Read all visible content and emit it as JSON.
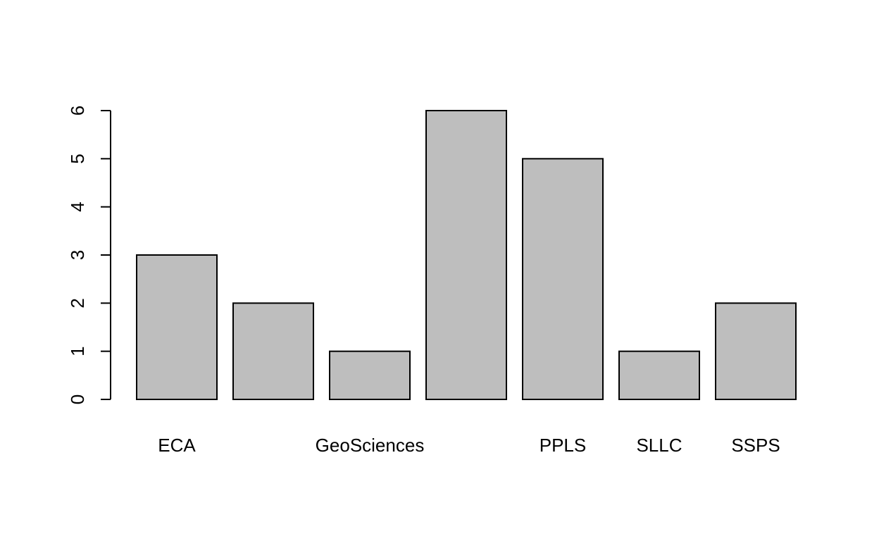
{
  "chart_data": {
    "type": "bar",
    "categories": [
      "ECA",
      "",
      "GeoSciences",
      "",
      "PPLS",
      "SLLC",
      "SSPS"
    ],
    "values": [
      3,
      2,
      1,
      6,
      5,
      1,
      2
    ],
    "title": "",
    "xlabel": "",
    "ylabel": "",
    "ylim": [
      0,
      6
    ],
    "yticks": [
      0,
      1,
      2,
      3,
      4,
      5,
      6
    ],
    "grid": false,
    "legend": "none",
    "bar_color": "#bebebe",
    "bar_edge_color": "#000000"
  }
}
